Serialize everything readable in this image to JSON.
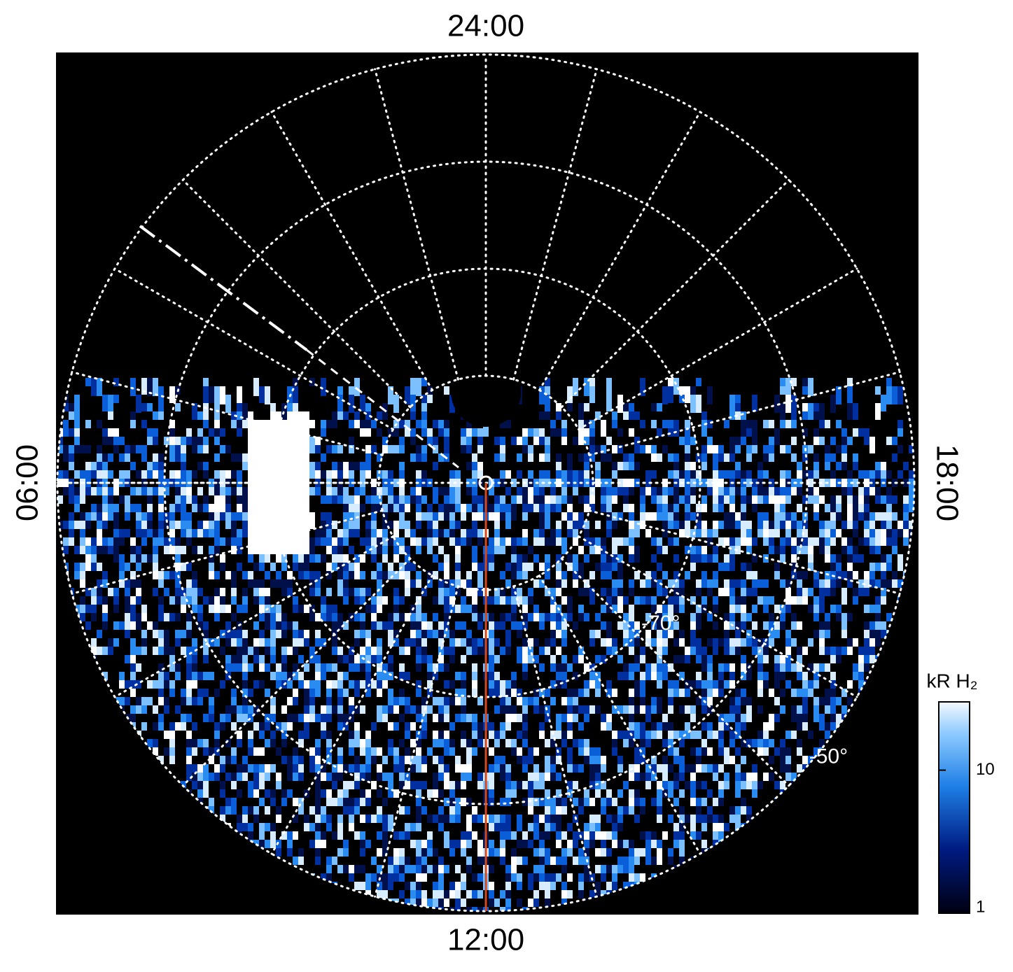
{
  "chart_data": {
    "type": "polar-image",
    "local_time_labels": {
      "top": "24:00",
      "bottom": "12:00",
      "left": "06:00",
      "right": "18:00"
    },
    "rlim": [
      -90,
      -50
    ],
    "rgrid": [
      -80,
      -70,
      -60,
      -50
    ],
    "rlabels": [
      {
        "value": -70,
        "label": "-70°"
      },
      {
        "value": -50,
        "label": "-50°"
      }
    ],
    "colorbar": {
      "title": "kR H₂",
      "lim": [
        1,
        30
      ],
      "log": true,
      "ticks": [
        {
          "value": 1,
          "label": "1"
        },
        {
          "value": 10,
          "label": "10"
        }
      ]
    },
    "meridian_color": "#d24a1e"
  }
}
